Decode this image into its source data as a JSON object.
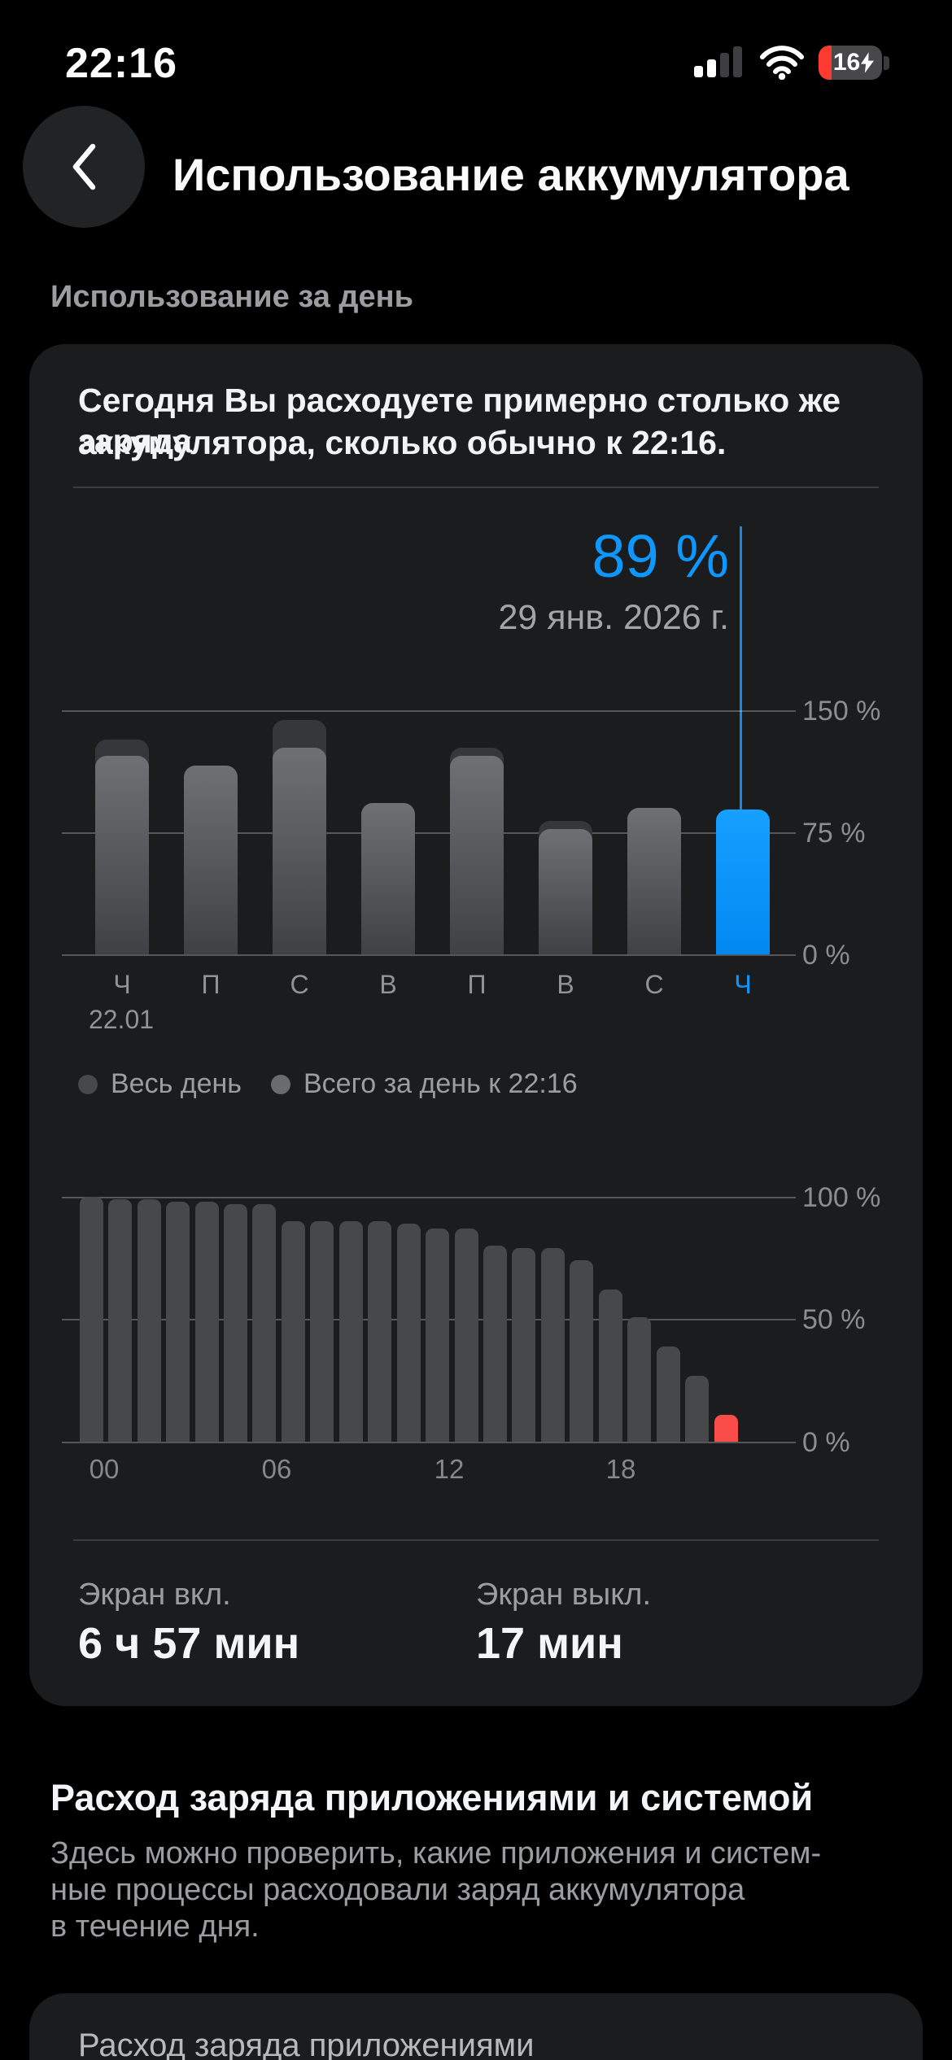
{
  "status_bar": {
    "time": "22:16",
    "battery_percent": "16",
    "charging": true
  },
  "header": {
    "title": "Использование аккумулятора"
  },
  "sections": {
    "daily_usage_label": "Использование за день",
    "apps_heading": "Расход заряда приложениями и системой",
    "apps_description_lines": [
      "Здесь можно проверить, какие приложения и систем-",
      "ные процессы расходовали заряд аккумулятора",
      "в течение дня."
    ]
  },
  "usage_card": {
    "summary_lines": [
      "Сегодня Вы расходуете примерно столько же заряда",
      "аккумулятора, сколько обычно к 22:16."
    ],
    "stats": [
      {
        "label": "Экран вкл.",
        "value": "6 ч 57 мин"
      },
      {
        "label": "Экран выкл.",
        "value": "17 мин"
      }
    ]
  },
  "apps_card": {
    "title": "Расход заряда приложениями"
  },
  "colors": {
    "accent_blue": "#0d97ff",
    "alert_red": "#fa4d49",
    "battery_red": "#ff3b30",
    "bar_gray_total": "#35373a",
    "bar_gray_current": "#55575a",
    "daily_bar_gray": "#47484a"
  },
  "chart_data": [
    {
      "type": "bar",
      "name": "weekly_battery_usage",
      "title": "89 %",
      "subtitle": "29 янв. 2026 г.",
      "categories": [
        "Ч",
        "П",
        "С",
        "В",
        "П",
        "В",
        "С",
        "Ч"
      ],
      "first_category_date": "22.01",
      "series": [
        {
          "name": "Весь день",
          "values": [
            132,
            116,
            144,
            93,
            127,
            82,
            90,
            89
          ]
        },
        {
          "name": "Всего за день к 22:16",
          "values": [
            122,
            116,
            127,
            93,
            122,
            77,
            90,
            89
          ]
        }
      ],
      "highlight_index": 7,
      "highlight_value": 89,
      "y_ticks": [
        {
          "label": "150 %",
          "value": 150
        },
        {
          "label": "75 %",
          "value": 75
        },
        {
          "label": "0 %",
          "value": 0
        }
      ],
      "ylim": [
        0,
        150
      ],
      "legend_position": "bottom",
      "grid": true
    },
    {
      "type": "bar",
      "name": "daily_battery_level",
      "values": [
        100,
        99,
        99,
        98,
        98,
        97,
        97,
        90,
        90,
        90,
        90,
        89,
        87,
        87,
        80,
        79,
        79,
        74,
        62,
        51,
        39,
        27,
        11
      ],
      "highlight_index": 22,
      "x_ticks": [
        {
          "label": "00",
          "hour": 0
        },
        {
          "label": "06",
          "hour": 6
        },
        {
          "label": "12",
          "hour": 12
        },
        {
          "label": "18",
          "hour": 18
        }
      ],
      "y_ticks": [
        {
          "label": "100 %",
          "value": 100
        },
        {
          "label": "50 %",
          "value": 50
        },
        {
          "label": "0 %",
          "value": 0
        }
      ],
      "ylim": [
        0,
        100
      ],
      "grid": true
    }
  ]
}
